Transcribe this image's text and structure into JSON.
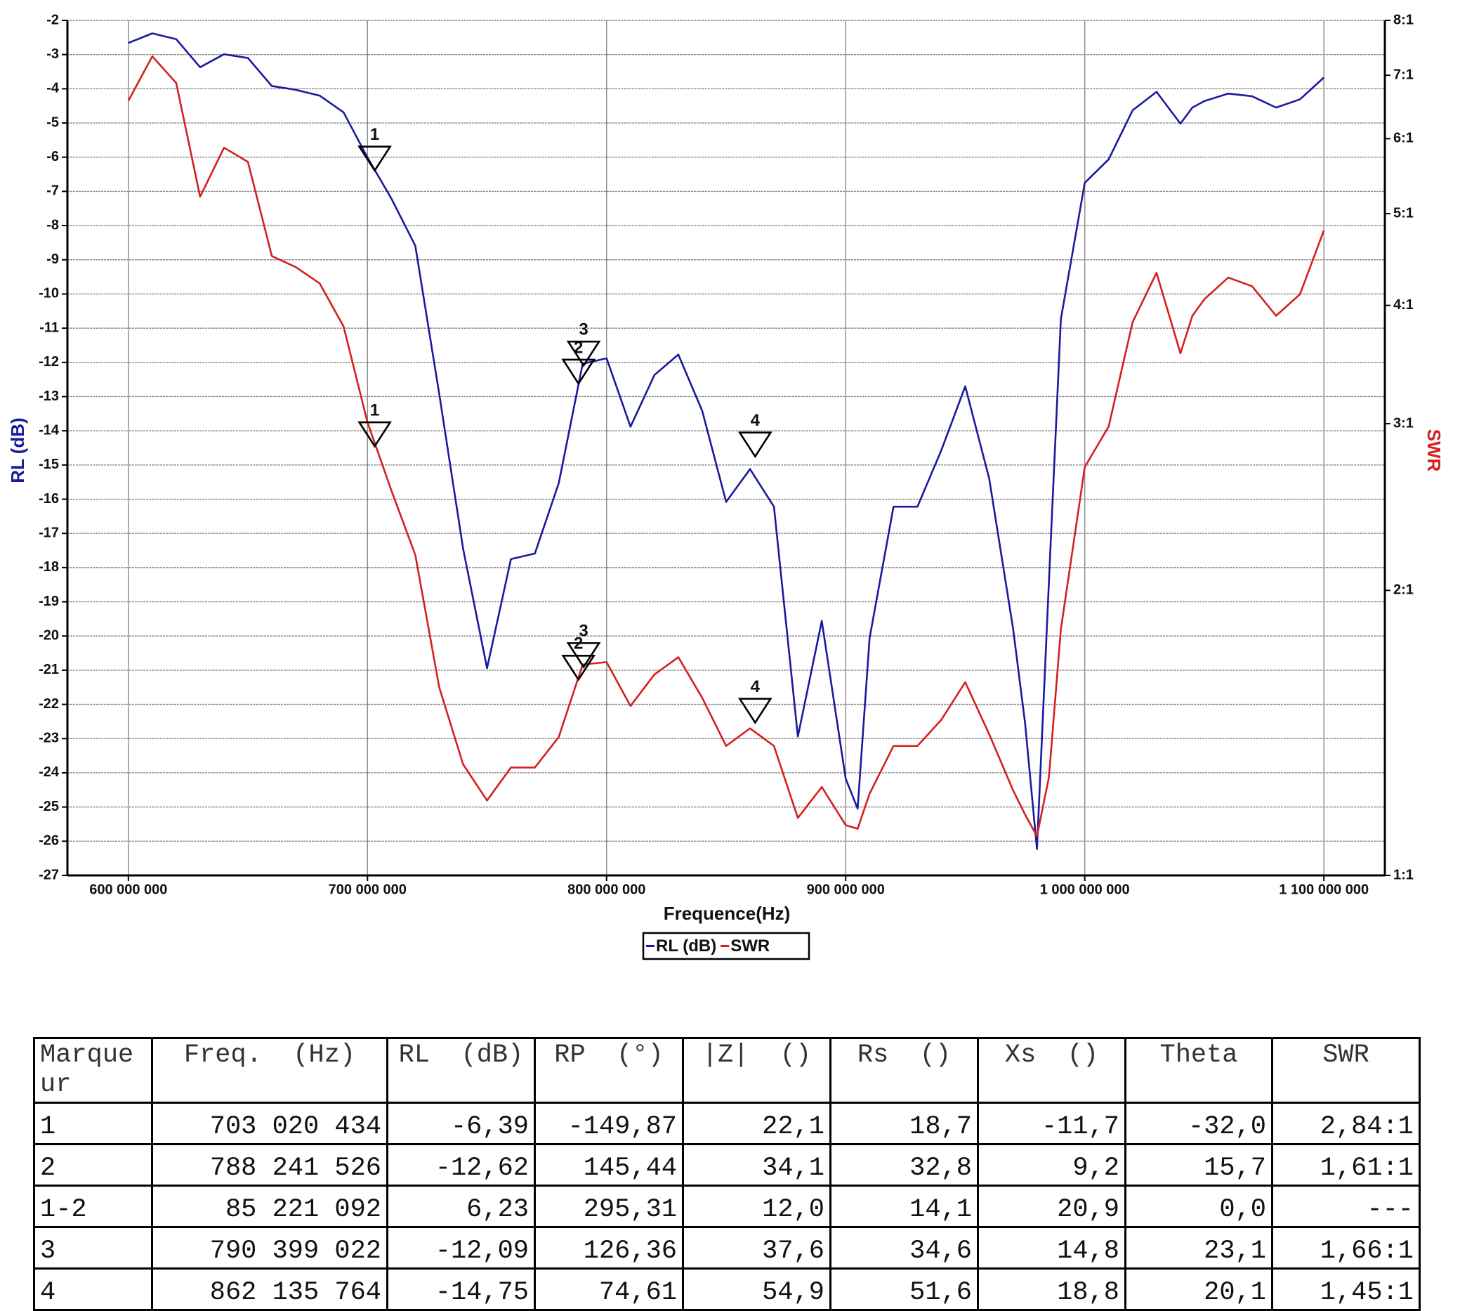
{
  "chart_data": {
    "type": "line",
    "x_label": "Frequence(Hz)",
    "y_label": "RL (dB)",
    "y2_label": "SWR",
    "x": [
      600000000,
      610000000,
      620000000,
      630000000,
      640000000,
      650000000,
      660000000,
      670000000,
      680000000,
      690000000,
      700000000,
      710000000,
      720000000,
      730000000,
      740000000,
      750000000,
      760000000,
      770000000,
      780000000,
      790000000,
      800000000,
      810000000,
      820000000,
      830000000,
      840000000,
      850000000,
      860000000,
      870000000,
      880000000,
      890000000,
      900000000,
      905000000,
      910000000,
      920000000,
      930000000,
      940000000,
      950000000,
      960000000,
      970000000,
      975000000,
      980000000,
      985000000,
      990000000,
      1000000000,
      1010000000,
      1020000000,
      1030000000,
      1040000000,
      1045000000,
      1050000000,
      1060000000,
      1070000000,
      1080000000,
      1090000000,
      1100000000
    ],
    "xlim": [
      574500000,
      1125500000
    ],
    "xticks": [
      {
        "value": 600000000,
        "label": "600 000 000"
      },
      {
        "value": 700000000,
        "label": "700 000 000"
      },
      {
        "value": 800000000,
        "label": "800 000 000"
      },
      {
        "value": 900000000,
        "label": "900 000 000"
      },
      {
        "value": 1000000000,
        "label": "1 000 000 000"
      },
      {
        "value": 1100000000,
        "label": "1 100 000 000"
      }
    ],
    "ylim": [
      -27,
      -2
    ],
    "yticks": [
      -2,
      -3,
      -4,
      -5,
      -6,
      -7,
      -8,
      -9,
      -10,
      -11,
      -12,
      -13,
      -14,
      -15,
      -16,
      -17,
      -18,
      -19,
      -20,
      -21,
      -22,
      -23,
      -24,
      -25,
      -26,
      -27
    ],
    "y2lim": [
      1,
      8
    ],
    "y2scale": "log",
    "y2ticks": [
      {
        "value": 8,
        "label": "8:1"
      },
      {
        "value": 7,
        "label": "7:1"
      },
      {
        "value": 6,
        "label": "6:1"
      },
      {
        "value": 5,
        "label": "5:1"
      },
      {
        "value": 4,
        "label": "4:1"
      },
      {
        "value": 3,
        "label": "3:1"
      },
      {
        "value": 2,
        "label": "2:1"
      },
      {
        "value": 1,
        "label": "1:1"
      }
    ],
    "grid": true,
    "legend": "bottom",
    "series": [
      {
        "name": "RL (dB)",
        "color": "#1a1aa0",
        "values": [
          -2.66,
          -2.38,
          -2.55,
          -3.37,
          -2.99,
          -3.1,
          -3.92,
          -4.03,
          -4.2,
          -4.69,
          -6.01,
          -7.21,
          -8.59,
          -12.92,
          -17.45,
          -20.94,
          -17.75,
          -17.59,
          -15.53,
          -12.04,
          -11.88,
          -13.88,
          -12.37,
          -11.77,
          -13.42,
          -16.08,
          -15.12,
          -16.22,
          -22.94,
          -19.56,
          -24.17,
          -25.05,
          -20.06,
          -16.22,
          -16.22,
          -14.57,
          -12.7,
          -15.39,
          -19.78,
          -22.53,
          -26.23,
          -18.41,
          -10.73,
          -6.75,
          -6.06,
          -4.63,
          -4.09,
          -5.02,
          -4.55,
          -4.36,
          -4.14,
          -4.22,
          -4.55,
          -4.31,
          -3.67
        ]
      },
      {
        "name": "SWR",
        "color": "#d42020",
        "axis": "y2",
        "values": [
          6.58,
          7.33,
          6.87,
          5.21,
          5.87,
          5.67,
          4.51,
          4.39,
          4.22,
          3.8,
          3.01,
          2.55,
          2.18,
          1.58,
          1.31,
          1.2,
          1.3,
          1.3,
          1.4,
          1.67,
          1.68,
          1.51,
          1.63,
          1.7,
          1.54,
          1.37,
          1.43,
          1.37,
          1.15,
          1.24,
          1.13,
          1.12,
          1.22,
          1.37,
          1.37,
          1.46,
          1.6,
          1.41,
          1.23,
          1.16,
          1.1,
          1.27,
          1.82,
          2.7,
          2.98,
          3.84,
          4.33,
          3.56,
          3.9,
          4.06,
          4.28,
          4.19,
          3.9,
          4.11,
          4.8
        ]
      }
    ],
    "markers": [
      {
        "label": "1",
        "x": 703020434,
        "values": [
          -6.39,
          2.84
        ]
      },
      {
        "label": "2",
        "x": 788241526,
        "values": [
          -12.62,
          1.61
        ]
      },
      {
        "label": "3",
        "x": 790399022,
        "values": [
          -12.09,
          1.66
        ]
      },
      {
        "label": "4",
        "x": 862135764,
        "values": [
          -14.75,
          1.45
        ]
      }
    ]
  },
  "table": {
    "header": [
      "Marqueur",
      "Freq.  (Hz)",
      "RL  (dB)",
      "RP  (°)",
      "|Z|  ()",
      "Rs  ()",
      "Xs  ()",
      "Theta",
      "SWR"
    ],
    "rows": [
      [
        "1",
        "703 020 434",
        "-6,39",
        "-149,87",
        "22,1",
        "18,7",
        "-11,7",
        "-32,0",
        "2,84:1"
      ],
      [
        "2",
        "788 241 526",
        "-12,62",
        "145,44",
        "34,1",
        "32,8",
        "9,2",
        "15,7",
        "1,61:1"
      ],
      [
        "1-2",
        "85 221 092",
        "6,23",
        "295,31",
        "12,0",
        "14,1",
        "20,9",
        "0,0",
        "---"
      ],
      [
        "3",
        "790 399 022",
        "-12,09",
        "126,36",
        "37,6",
        "34,6",
        "14,8",
        "23,1",
        "1,66:1"
      ],
      [
        "4",
        "862 135 764",
        "-14,75",
        "74,61",
        "54,9",
        "51,6",
        "18,8",
        "20,1",
        "1,45:1"
      ]
    ]
  }
}
